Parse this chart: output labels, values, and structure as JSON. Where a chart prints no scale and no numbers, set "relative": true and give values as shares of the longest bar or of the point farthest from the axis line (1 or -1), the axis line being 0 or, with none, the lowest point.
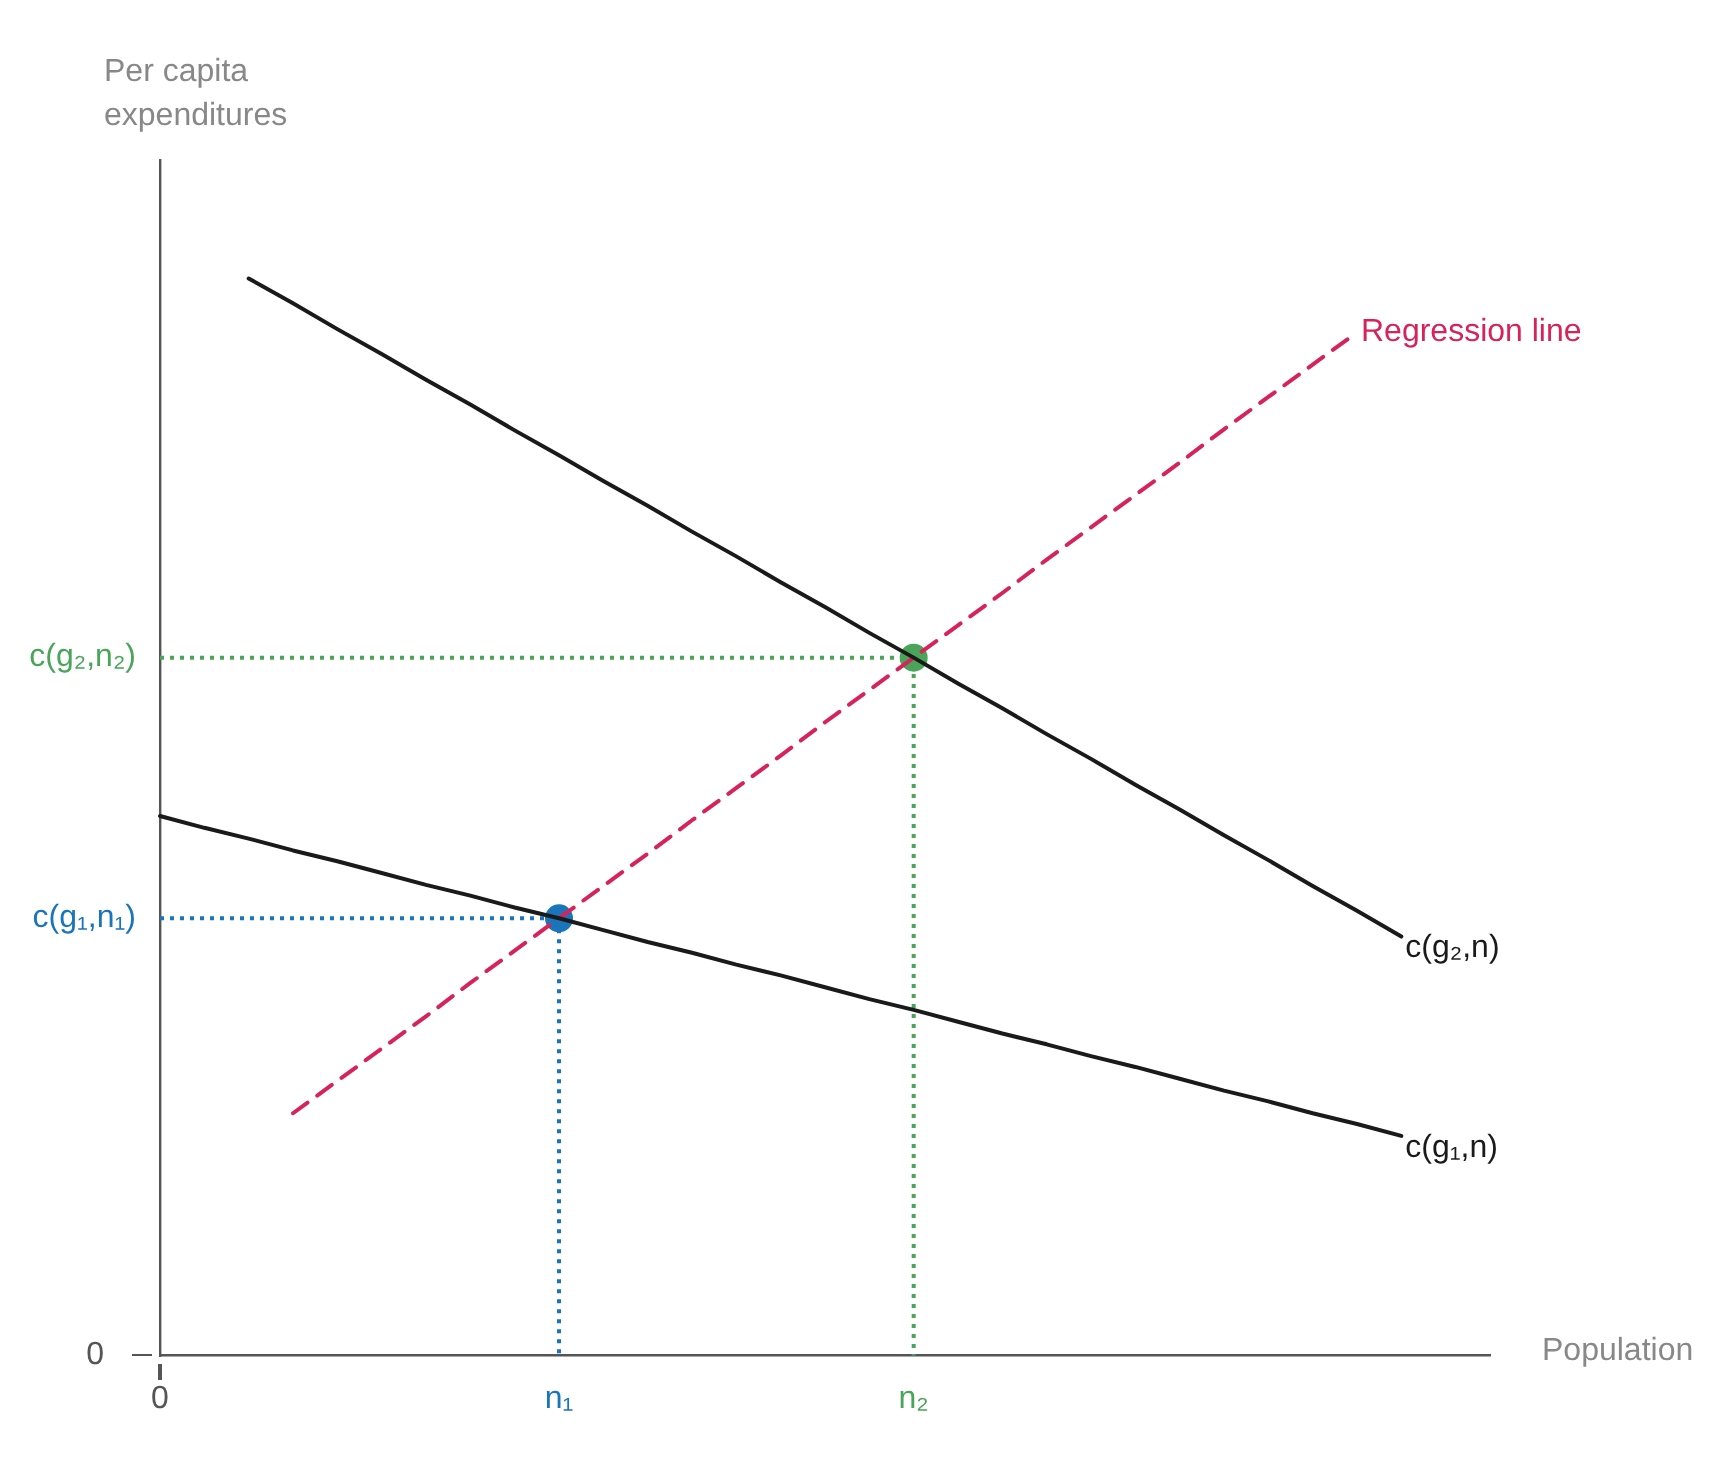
{
  "chart_data": {
    "type": "line",
    "relative": true,
    "xlabel": "Population",
    "ylabel": "Per capita expenditures",
    "legend": false,
    "grid": false,
    "line_style": "solid",
    "marker": "none",
    "categories": [
      "0",
      null,
      null,
      null,
      null,
      null,
      null,
      null,
      null,
      "n₁",
      null,
      null,
      null,
      null,
      null,
      null,
      null,
      "n₂",
      null,
      null,
      null,
      null,
      null,
      null,
      null,
      null,
      null,
      null,
      null,
      null,
      null
    ],
    "series": [
      {
        "name": "c(g₂,n)",
        "color": "#1a1a1a",
        "values": [
          null,
          null,
          1.0,
          0.977,
          0.953,
          0.93,
          0.906,
          0.883,
          0.859,
          0.836,
          0.812,
          0.789,
          0.765,
          0.742,
          0.718,
          0.695,
          0.671,
          0.648,
          0.624,
          0.601,
          0.577,
          0.554,
          0.53,
          0.507,
          0.483,
          0.46,
          0.436,
          0.413,
          0.389,
          null,
          null
        ]
      },
      {
        "name": "c(g₁,n)",
        "color": "#1a1a1a",
        "values": [
          0.501,
          0.49,
          0.48,
          0.469,
          0.459,
          0.448,
          0.437,
          0.427,
          0.416,
          0.406,
          0.395,
          0.384,
          0.374,
          0.363,
          0.353,
          0.342,
          0.331,
          0.321,
          0.31,
          0.299,
          0.289,
          0.278,
          0.268,
          0.257,
          0.246,
          0.236,
          0.225,
          0.215,
          0.204,
          null,
          null
        ]
      },
      {
        "name": "Regression line",
        "color": "#d6245a",
        "line_style": "dashed",
        "values": [
          null,
          null,
          null,
          0.225,
          0.255,
          0.285,
          0.315,
          0.346,
          0.376,
          0.406,
          0.436,
          0.466,
          0.497,
          0.527,
          0.557,
          0.588,
          0.618,
          0.648,
          0.678,
          0.708,
          0.739,
          0.769,
          0.799,
          0.829,
          0.86,
          0.89,
          0.92,
          0.95,
          null,
          null,
          null
        ]
      },
      {
        "type": "scatter",
        "marker": "circle",
        "color": "#1a75bb",
        "values": [
          null,
          null,
          null,
          null,
          null,
          null,
          null,
          null,
          null,
          0.406,
          null,
          null,
          null,
          null,
          null,
          null,
          null,
          null,
          null,
          null,
          null,
          null,
          null,
          null,
          null,
          null,
          null,
          null,
          null,
          null,
          null
        ]
      },
      {
        "type": "scatter",
        "marker": "circle",
        "color": "#4aa55a",
        "values": [
          null,
          null,
          null,
          null,
          null,
          null,
          null,
          null,
          null,
          null,
          null,
          null,
          null,
          null,
          null,
          null,
          null,
          0.648,
          null,
          null,
          null,
          null,
          null,
          null,
          null,
          null,
          null,
          null,
          null,
          null,
          null
        ]
      }
    ],
    "annotations": [
      "0",
      "c(g₁,n₁)",
      "c(g₂,n₂)"
    ]
  }
}
